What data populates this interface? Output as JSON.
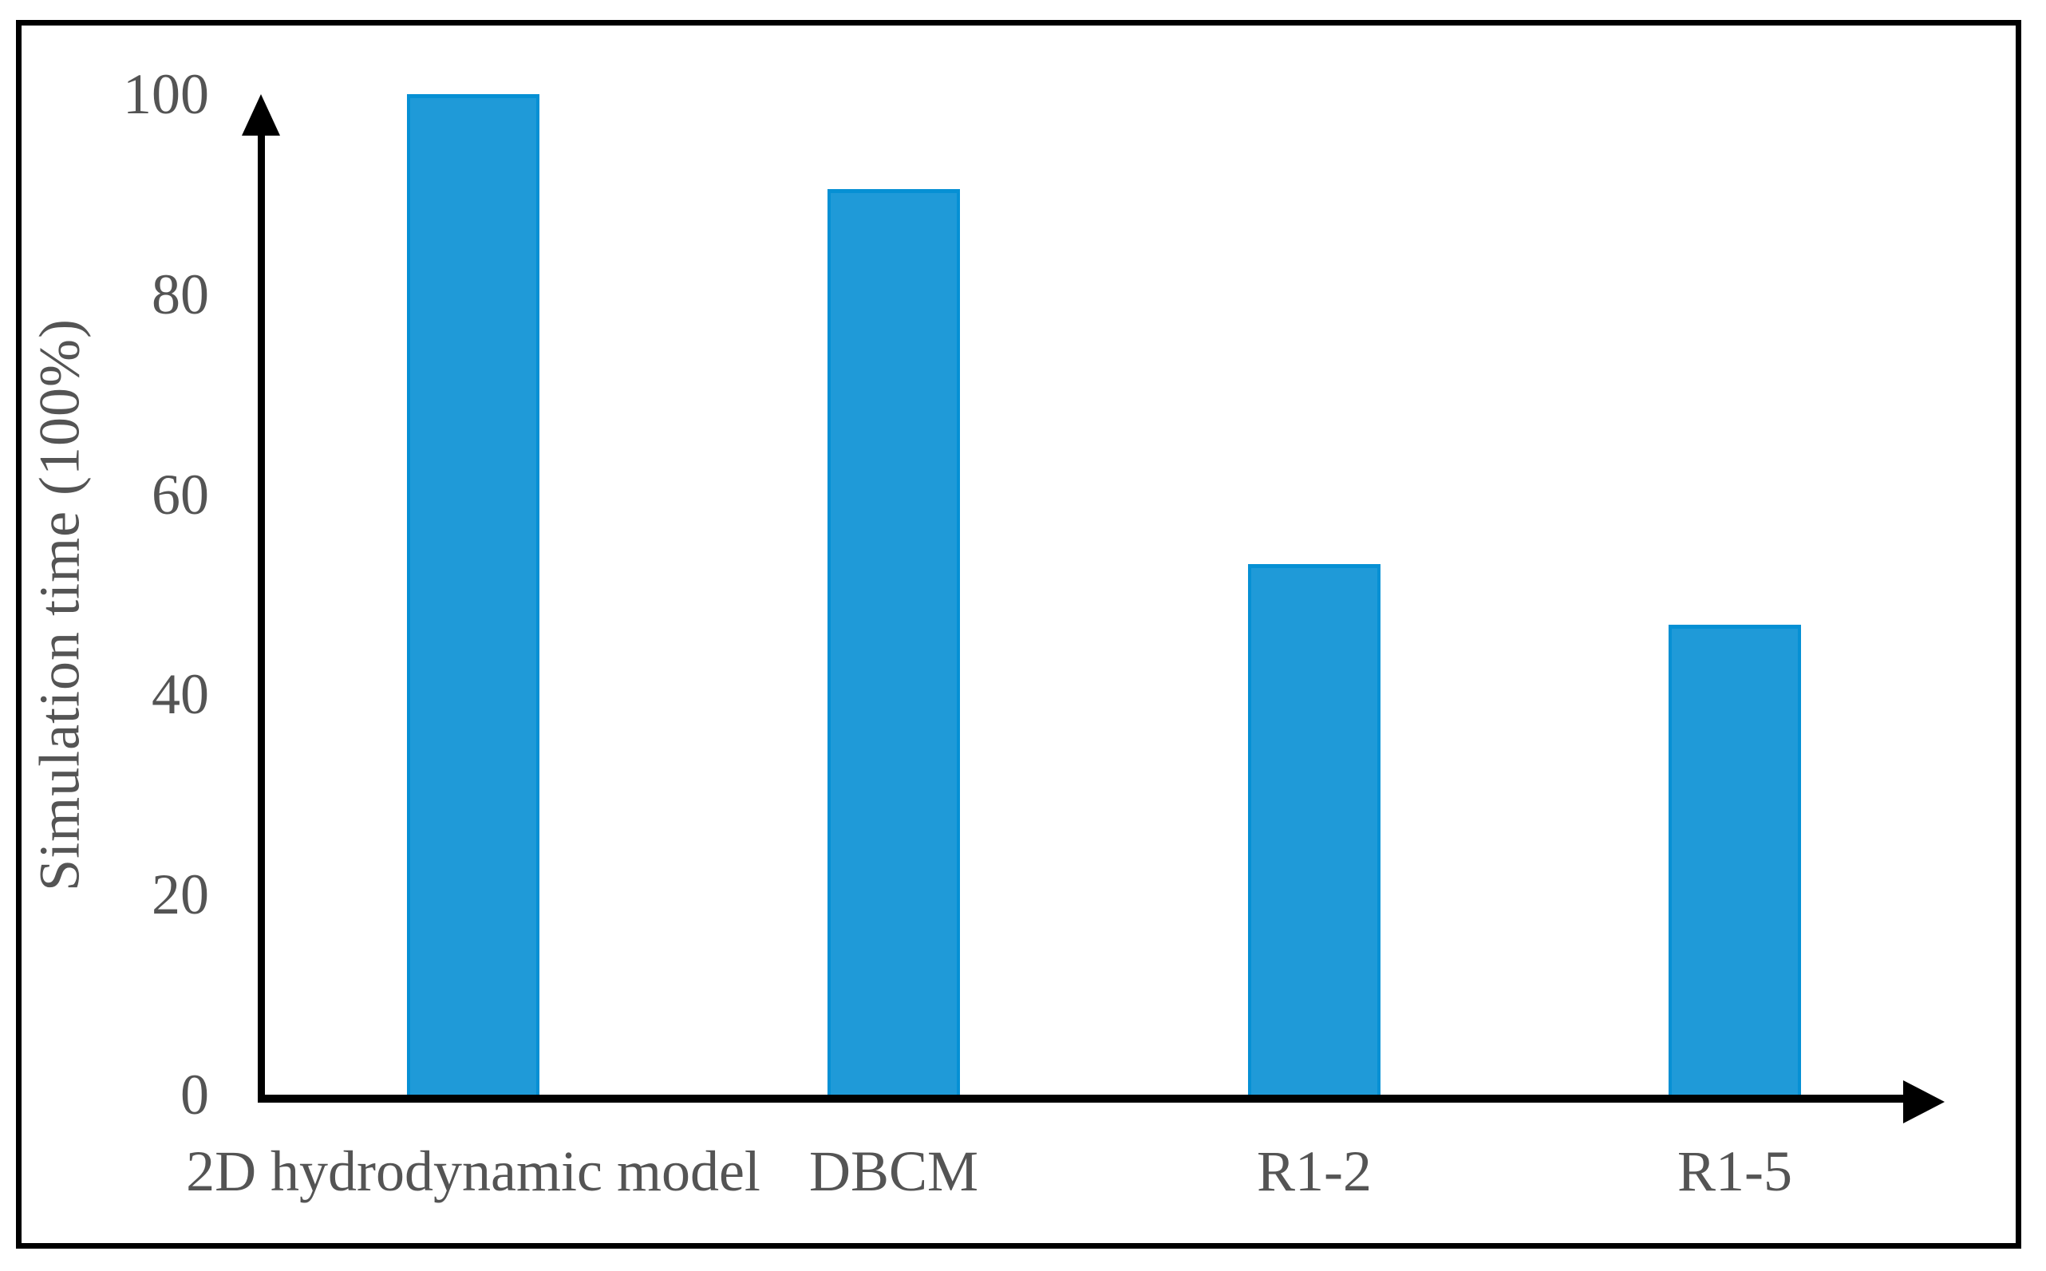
{
  "chart_data": {
    "type": "bar",
    "title": "",
    "ylabel": "Simulation time (100%)",
    "xlabel": "",
    "categories": [
      "2D hydrodynamic model",
      "DBCM",
      "R1-2",
      "R1-5"
    ],
    "values": [
      100,
      90.5,
      53,
      47
    ],
    "ylim": [
      0,
      100
    ],
    "yticks": [
      0,
      20,
      40,
      60,
      80,
      100
    ],
    "grid": false,
    "legend_position": "none",
    "bar_color": "#1F9AD8",
    "bar_edge_color": "#0690D4",
    "axis_color": "#000000",
    "text_color": "#545454",
    "frame_color": "#000000",
    "background": "#FFFFFF"
  }
}
